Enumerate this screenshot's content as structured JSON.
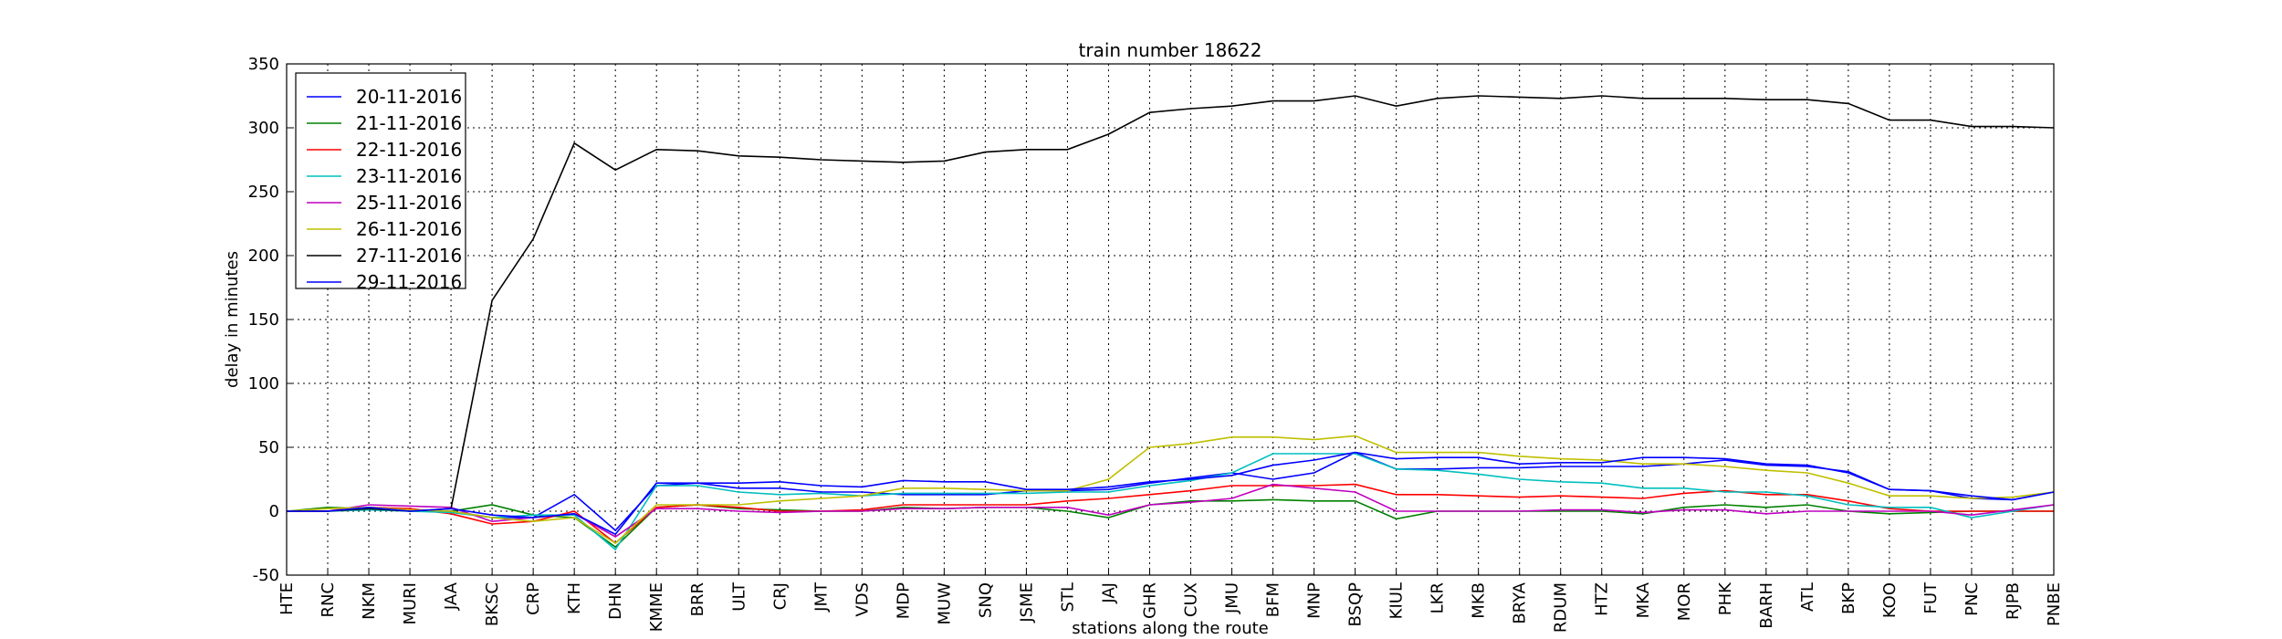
{
  "chart_data": {
    "type": "line",
    "title": "train number 18622",
    "x_label": "stations along the route",
    "y_label": "delay in minutes",
    "categories": [
      "HTE",
      "RNC",
      "NKM",
      "MURI",
      "JAA",
      "BKSC",
      "CRP",
      "KTH",
      "DHN",
      "KMME",
      "BRR",
      "ULT",
      "CRJ",
      "JMT",
      "VDS",
      "MDP",
      "MUW",
      "SNQ",
      "JSME",
      "STL",
      "JAJ",
      "GHR",
      "CUX",
      "JMU",
      "BFM",
      "MNP",
      "BSQP",
      "KIUL",
      "LKR",
      "MKB",
      "BRYA",
      "RDUM",
      "HTZ",
      "MKA",
      "MOR",
      "PHK",
      "BARH",
      "ATL",
      "BKP",
      "KOO",
      "FUT",
      "PNC",
      "RJPB",
      "PNBE"
    ],
    "ylim": [
      -50,
      350
    ],
    "yticks": [
      -50,
      0,
      50,
      100,
      150,
      200,
      250,
      300,
      350
    ],
    "grid": true,
    "legend": "upper left",
    "series": [
      {
        "name": "20-11-2016",
        "color": "#0000ff",
        "values": [
          0,
          0,
          2,
          0,
          0,
          -5,
          -5,
          13,
          -15,
          20,
          22,
          18,
          18,
          15,
          15,
          13,
          13,
          13,
          16,
          16,
          17,
          22,
          26,
          30,
          25,
          30,
          46,
          33,
          33,
          34,
          34,
          35,
          35,
          35,
          37,
          40,
          36,
          35,
          31,
          17,
          16,
          10,
          9,
          15
        ]
      },
      {
        "name": "21-11-2016",
        "color": "#008000",
        "values": [
          0,
          3,
          2,
          1,
          0,
          5,
          -3,
          -5,
          -28,
          3,
          5,
          2,
          1,
          0,
          0,
          3,
          2,
          3,
          3,
          0,
          -5,
          5,
          8,
          8,
          9,
          8,
          8,
          -6,
          0,
          0,
          0,
          0,
          0,
          -2,
          3,
          5,
          3,
          5,
          0,
          -2,
          -1,
          0,
          0,
          0
        ]
      },
      {
        "name": "22-11-2016",
        "color": "#ff0000",
        "values": [
          0,
          0,
          3,
          2,
          -2,
          -10,
          -8,
          0,
          -25,
          3,
          5,
          3,
          0,
          0,
          1,
          5,
          5,
          5,
          5,
          8,
          10,
          13,
          16,
          20,
          20,
          20,
          21,
          13,
          13,
          12,
          11,
          12,
          11,
          10,
          14,
          16,
          13,
          13,
          8,
          2,
          0,
          0,
          0,
          0
        ]
      },
      {
        "name": "23-11-2016",
        "color": "#00bfbf",
        "values": [
          0,
          0,
          1,
          0,
          -1,
          -5,
          -3,
          -3,
          -30,
          20,
          20,
          15,
          13,
          14,
          12,
          14,
          14,
          14,
          14,
          15,
          15,
          20,
          24,
          30,
          45,
          45,
          45,
          33,
          32,
          29,
          25,
          23,
          22,
          18,
          18,
          15,
          15,
          12,
          5,
          3,
          3,
          -5,
          0,
          5
        ]
      },
      {
        "name": "25-11-2016",
        "color": "#bf00bf",
        "values": [
          0,
          0,
          5,
          4,
          3,
          -8,
          -5,
          -2,
          -20,
          2,
          2,
          0,
          -1,
          0,
          0,
          2,
          2,
          3,
          3,
          3,
          -3,
          5,
          7,
          10,
          21,
          18,
          15,
          0,
          0,
          0,
          0,
          1,
          1,
          -1,
          1,
          1,
          -2,
          0,
          0,
          0,
          0,
          -3,
          1,
          5
        ]
      },
      {
        "name": "26-11-2016",
        "color": "#bfbf00",
        "values": [
          0,
          2,
          3,
          1,
          0,
          -5,
          -8,
          -5,
          -25,
          5,
          5,
          5,
          8,
          10,
          12,
          18,
          18,
          17,
          16,
          16,
          25,
          50,
          53,
          58,
          58,
          56,
          59,
          46,
          46,
          46,
          43,
          41,
          40,
          37,
          37,
          35,
          32,
          30,
          22,
          12,
          12,
          10,
          11,
          15
        ]
      },
      {
        "name": "27-11-2016",
        "color": "#000000",
        "values": [
          0,
          0,
          2,
          0,
          2,
          165,
          213,
          288,
          267,
          283,
          282,
          278,
          277,
          275,
          274,
          273,
          274,
          281,
          283,
          283,
          295,
          312,
          315,
          317,
          321,
          321,
          325,
          317,
          323,
          325,
          324,
          323,
          325,
          323,
          323,
          323,
          322,
          322,
          319,
          306,
          306,
          301,
          301,
          300
        ]
      },
      {
        "name": "29-11-2016",
        "color": "#0000ff",
        "values": [
          0,
          0,
          3,
          0,
          2,
          -3,
          -5,
          -2,
          -18,
          22,
          22,
          22,
          23,
          20,
          19,
          24,
          23,
          23,
          17,
          17,
          19,
          23,
          25,
          28,
          36,
          40,
          46,
          41,
          42,
          42,
          37,
          38,
          38,
          42,
          42,
          41,
          37,
          36,
          30,
          17,
          16,
          12,
          9,
          15
        ]
      }
    ]
  }
}
